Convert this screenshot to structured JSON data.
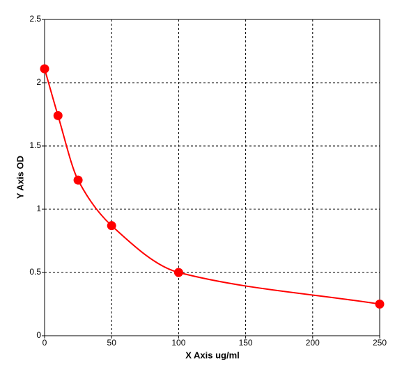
{
  "chart_data": {
    "type": "scatter",
    "x": [
      0,
      10,
      25,
      50,
      100,
      250
    ],
    "series": [
      {
        "color": "#ff0000",
        "values": [
          2.11,
          1.74,
          1.23,
          0.87,
          0.5,
          0.25
        ]
      }
    ],
    "x_label": "X Axis ug/ml",
    "y_label": "Y Axis OD",
    "xlim": [
      0,
      250
    ],
    "xticks": [
      0,
      50,
      100,
      150,
      200,
      250
    ],
    "ylim": [
      0,
      2.5
    ],
    "yticks": [
      0,
      0.5,
      1,
      1.5,
      2,
      2.5
    ],
    "grid": true,
    "fit_curve": true
  }
}
